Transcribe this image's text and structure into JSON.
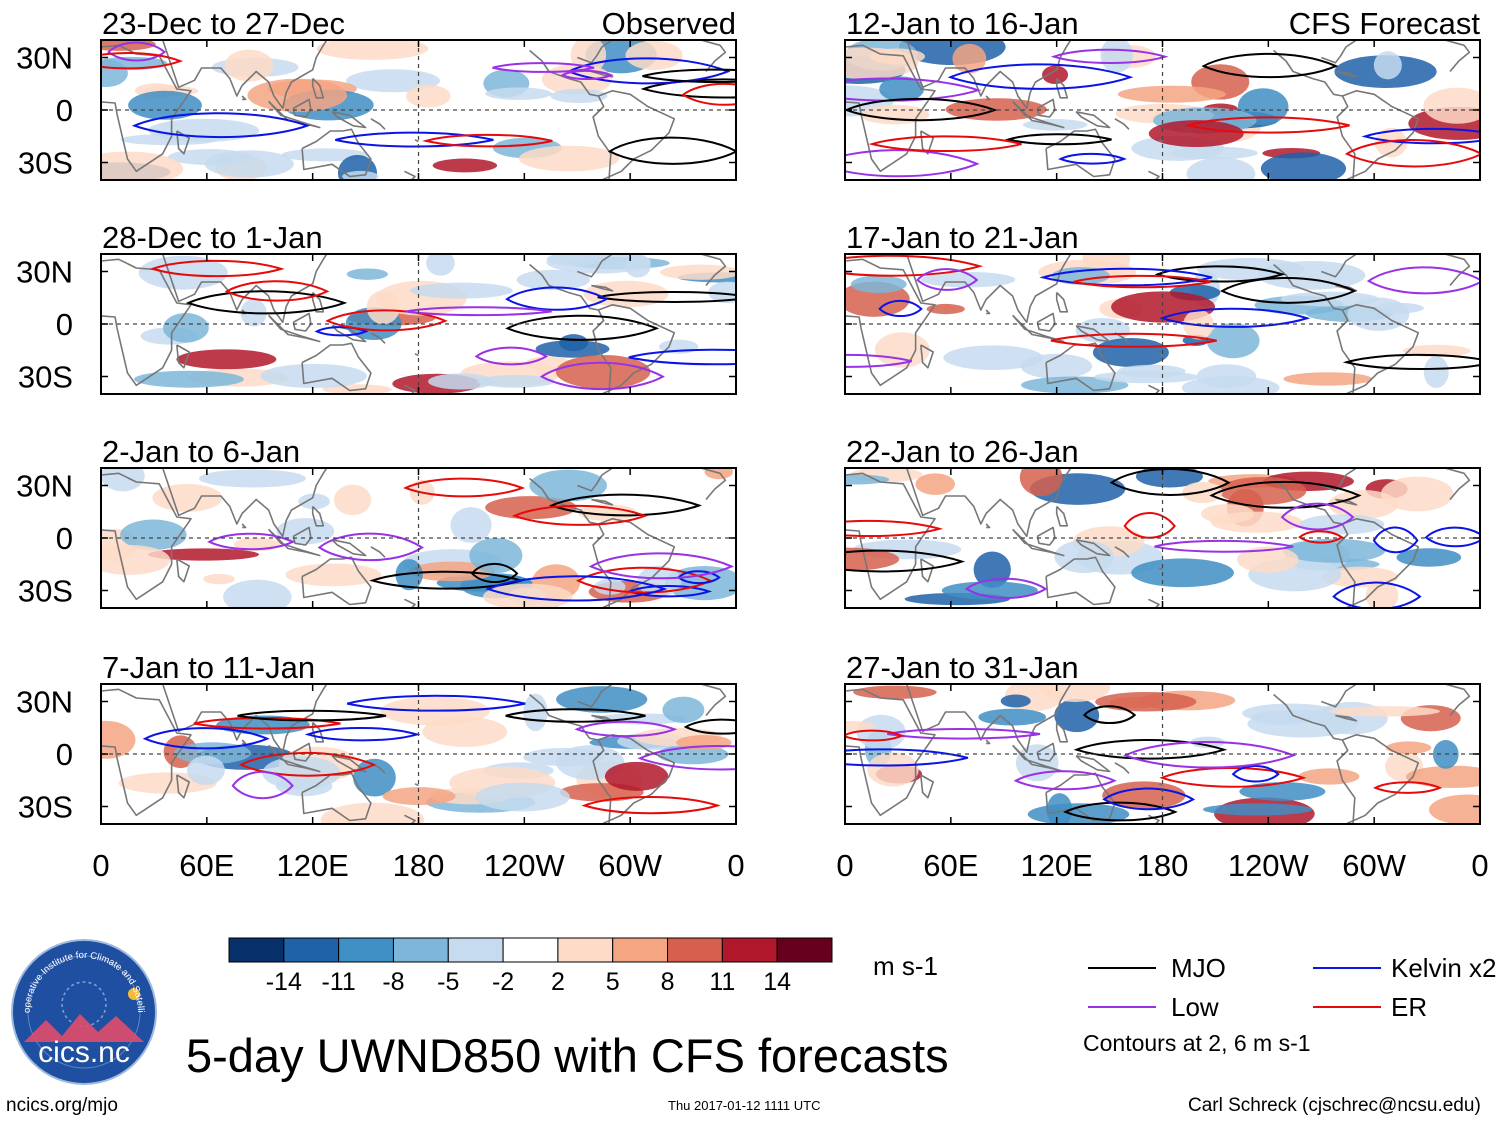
{
  "figure": {
    "title": "5-day UWND850 with CFS forecasts",
    "left_column_label": "Observed",
    "right_column_label": "CFS Forecast",
    "website": "ncics.org/mjo",
    "timestamp": "Thu 2017-01-12 1111 UTC",
    "author": "Carl Schreck (cjschrec@ncsu.edu)",
    "logo_text": "cics.nc",
    "logo_ring_text": "Cooperative Institute for Climate and Satellites",
    "units": "m s-1",
    "contours_note": "Contours at 2, 6 m s-1"
  },
  "legend": [
    {
      "label": "MJO",
      "color": "#000000"
    },
    {
      "label": "Kelvin x2",
      "color": "#0a14e6"
    },
    {
      "label": "Low",
      "color": "#9932e6"
    },
    {
      "label": "ER",
      "color": "#e60a0a"
    }
  ],
  "colors": {
    "continent_outline": "#777777",
    "equator_line": "#444444",
    "logo_bg": "#1f4fa0"
  },
  "chart_data": {
    "type": "heatmap",
    "variable": "850-hPa zonal wind anomaly (5-day mean)",
    "x_ticks": [
      "0",
      "60E",
      "120E",
      "180",
      "120W",
      "60W",
      "0"
    ],
    "y_ticks": [
      "30N",
      "0",
      "30S"
    ],
    "xlim": [
      0,
      360
    ],
    "ylim": [
      -40,
      40
    ],
    "colorbar": {
      "ticks": [
        "-14",
        "-11",
        "-8",
        "-5",
        "-2",
        "2",
        "5",
        "8",
        "11",
        "14"
      ],
      "colors": [
        "#08306b",
        "#1f62a8",
        "#3f8ec4",
        "#7db6d9",
        "#c6dbef",
        "#ffffff",
        "#fddbc7",
        "#f4a582",
        "#d6604d",
        "#b2182b",
        "#67001f"
      ]
    },
    "panels": [
      {
        "title": "23-Dec to 27-Dec",
        "column": "observed",
        "row": 0
      },
      {
        "title": "28-Dec to 1-Jan",
        "column": "observed",
        "row": 1
      },
      {
        "title": "2-Jan to 6-Jan",
        "column": "observed",
        "row": 2
      },
      {
        "title": "7-Jan to 11-Jan",
        "column": "observed",
        "row": 3
      },
      {
        "title": "12-Jan to 16-Jan",
        "column": "forecast",
        "row": 0
      },
      {
        "title": "17-Jan to 21-Jan",
        "column": "forecast",
        "row": 1
      },
      {
        "title": "22-Jan to 26-Jan",
        "column": "forecast",
        "row": 2
      },
      {
        "title": "27-Jan to 31-Jan",
        "column": "forecast",
        "row": 3
      }
    ]
  }
}
